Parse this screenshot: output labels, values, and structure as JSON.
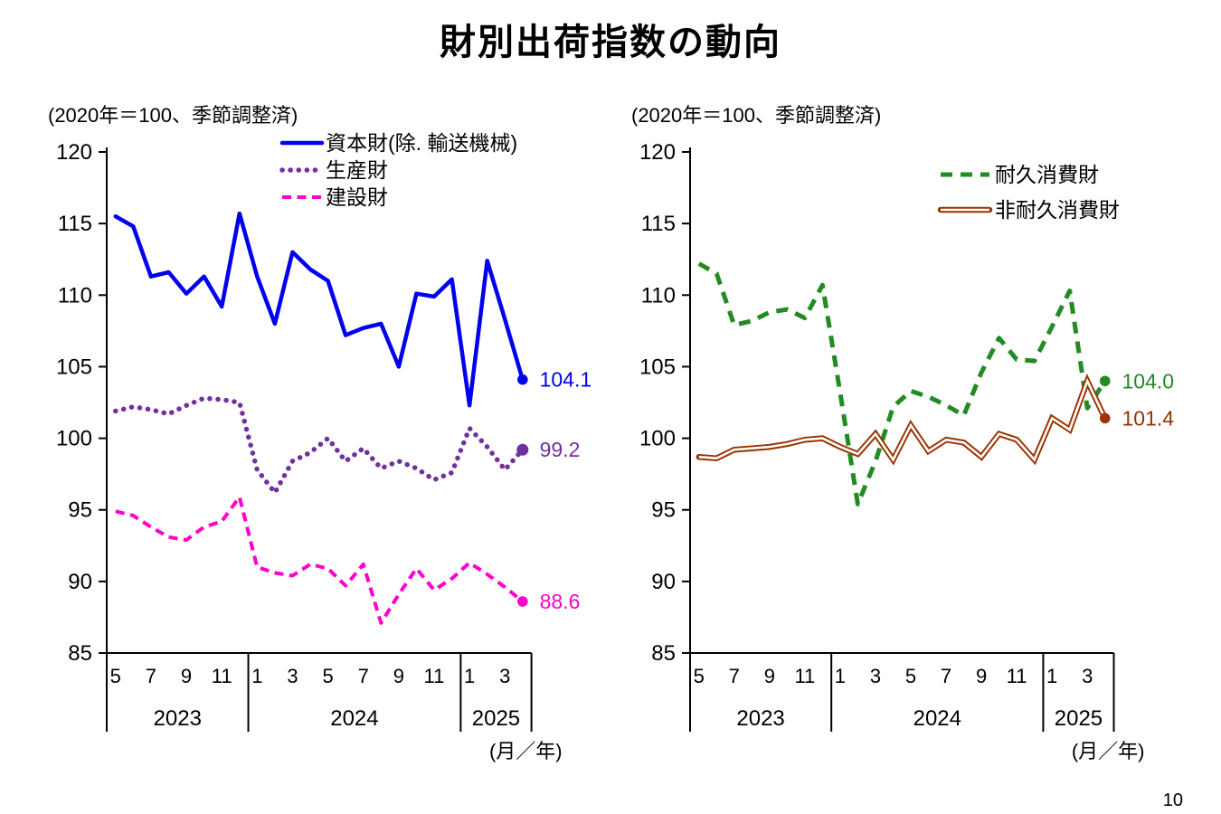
{
  "page": {
    "title": "財別出荷指数の動向",
    "page_number": "10"
  },
  "chart_data": [
    {
      "type": "line",
      "subtitle": "(2020年＝100、季節調整済)",
      "x_unit_label": "(月／年)",
      "ylim": [
        85,
        120
      ],
      "yticks": [
        120,
        115,
        110,
        105,
        100,
        95,
        90,
        85
      ],
      "grid": false,
      "legend_position": "top-right-inside",
      "x_groups": [
        {
          "year": "2023",
          "first_month": 5,
          "months": 8,
          "tick_months": [
            5,
            7,
            9,
            11
          ]
        },
        {
          "year": "2024",
          "first_month": 1,
          "months": 12,
          "tick_months": [
            1,
            3,
            5,
            7,
            9,
            11
          ]
        },
        {
          "year": "2025",
          "first_month": 1,
          "months": 4,
          "tick_months": [
            1,
            3
          ]
        }
      ],
      "series": [
        {
          "name": "資本財(除. 輸送機械)",
          "line": "solid",
          "color": "#0000EE",
          "end_label": "104.1",
          "values": [
            115.5,
            114.8,
            111.3,
            111.6,
            110.1,
            111.3,
            109.2,
            115.7,
            111.3,
            108.0,
            113.0,
            111.8,
            111.0,
            107.2,
            107.7,
            108.0,
            105.0,
            110.1,
            109.9,
            111.1,
            102.3,
            112.4,
            108.3,
            104.1
          ]
        },
        {
          "name": "生産財",
          "line": "dotted",
          "color": "#7030A0",
          "end_label": "99.2",
          "values": [
            101.9,
            102.2,
            102.0,
            101.7,
            102.3,
            102.8,
            102.7,
            102.5,
            97.8,
            96.2,
            98.4,
            99.0,
            100.0,
            98.4,
            99.3,
            97.9,
            98.4,
            97.9,
            97.1,
            97.6,
            100.7,
            99.4,
            97.8,
            99.2
          ]
        },
        {
          "name": "建設財",
          "line": "dashed",
          "color": "#FF00CC",
          "end_label": "88.6",
          "values": [
            94.9,
            94.6,
            93.8,
            93.1,
            92.9,
            93.8,
            94.2,
            95.9,
            91.0,
            90.6,
            90.4,
            91.2,
            90.9,
            89.7,
            91.2,
            87.1,
            89.1,
            90.9,
            89.4,
            90.2,
            91.3,
            90.5,
            89.6,
            88.6
          ]
        }
      ]
    },
    {
      "type": "line",
      "subtitle": "(2020年＝100、季節調整済)",
      "x_unit_label": "(月／年)",
      "ylim": [
        85,
        120
      ],
      "yticks": [
        120,
        115,
        110,
        105,
        100,
        95,
        90,
        85
      ],
      "grid": false,
      "legend_position": "right-inside",
      "x_groups": [
        {
          "year": "2023",
          "first_month": 5,
          "months": 8,
          "tick_months": [
            5,
            7,
            9,
            11
          ]
        },
        {
          "year": "2024",
          "first_month": 1,
          "months": 12,
          "tick_months": [
            1,
            3,
            5,
            7,
            9,
            11
          ]
        },
        {
          "year": "2025",
          "first_month": 1,
          "months": 4,
          "tick_months": [
            1,
            3
          ]
        }
      ],
      "series": [
        {
          "name": "耐久消費財",
          "line": "dashed",
          "color": "#228B22",
          "end_label": "104.0",
          "values": [
            112.2,
            111.5,
            107.9,
            108.2,
            108.8,
            109.0,
            108.4,
            110.7,
            103.2,
            95.4,
            98.4,
            102.2,
            103.3,
            102.9,
            102.3,
            101.6,
            104.6,
            107.0,
            105.5,
            105.4,
            107.8,
            110.3,
            102.1,
            104.0
          ]
        },
        {
          "name": "非耐久消費財",
          "line": "double",
          "color": "#993300",
          "end_label": "101.4",
          "values": [
            98.7,
            98.6,
            99.2,
            99.3,
            99.4,
            99.6,
            99.9,
            100.0,
            99.4,
            98.9,
            100.3,
            98.5,
            100.9,
            99.1,
            99.9,
            99.7,
            98.7,
            100.3,
            99.9,
            98.5,
            101.4,
            100.6,
            104.0,
            101.4
          ]
        }
      ]
    }
  ]
}
